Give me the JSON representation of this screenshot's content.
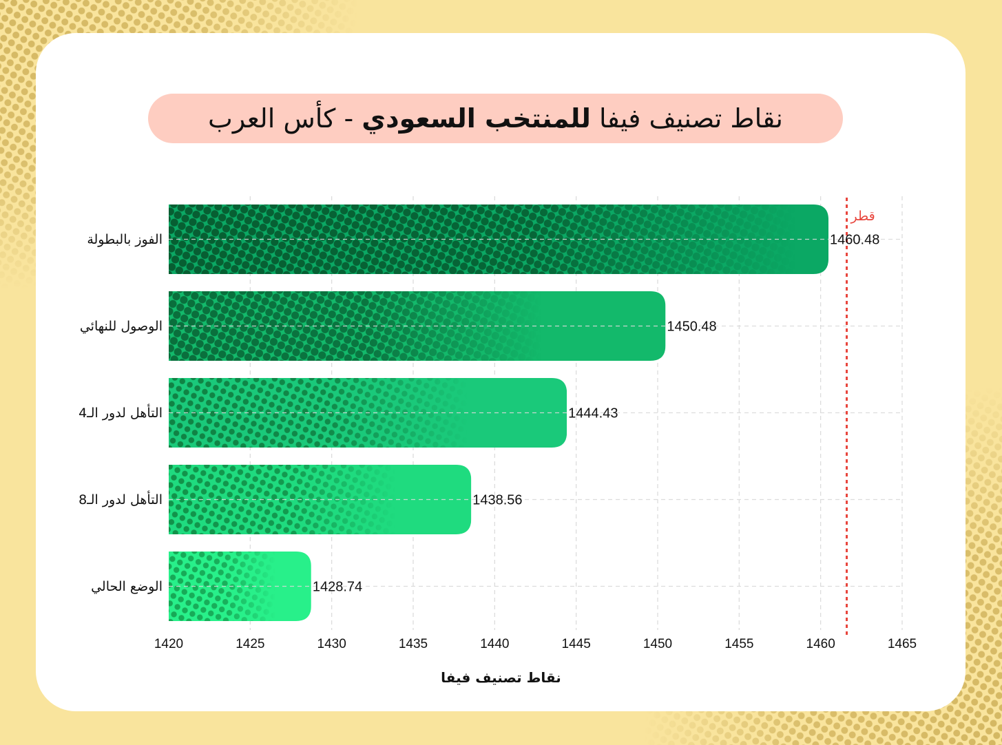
{
  "title": {
    "part_regular_1": "نقاط تصنيف فيفا ",
    "part_bold": "للمنتخب السعودي",
    "part_regular_2": " - كأس العرب"
  },
  "colors": {
    "page_background": "#f9e49d",
    "background_dots": "#d4b762",
    "card": "#ffffff",
    "title_pill": "#fecdc1",
    "reference_line": "#e8453c",
    "grid": "#d9d9d9",
    "bar_colors": [
      "#0ba864",
      "#13b96b",
      "#1ac97a",
      "#1fdb7f",
      "#28f08a"
    ],
    "bar_dot_colors": [
      "#075e32",
      "#0a6e3c",
      "#108244",
      "#12924a",
      "#17a856"
    ]
  },
  "chart_data": {
    "type": "bar",
    "orientation": "horizontal",
    "title": "نقاط تصنيف فيفا للمنتخب السعودي - كأس العرب",
    "xlabel": "نقاط تصنيف فيفا",
    "ylabel": "",
    "categories": [
      "الفوز بالبطولة",
      "الوصول للنهائي",
      "التأهل لدور الـ4",
      "التأهل لدور الـ8",
      "الوضع الحالي"
    ],
    "values": [
      1460.48,
      1450.48,
      1444.43,
      1438.56,
      1428.74
    ],
    "value_labels": [
      "1460.48",
      "1450.48",
      "1444.43",
      "1438.56",
      "1428.74"
    ],
    "xlim": [
      1420,
      1465
    ],
    "xticks": [
      "1420",
      "1425",
      "1430",
      "1435",
      "1440",
      "1445",
      "1450",
      "1455",
      "1460",
      "1465"
    ],
    "grid": true,
    "reference_line": {
      "label": "قطر",
      "value": 1461.6,
      "style": "dotted",
      "color": "#e8453c"
    },
    "legend": null
  }
}
